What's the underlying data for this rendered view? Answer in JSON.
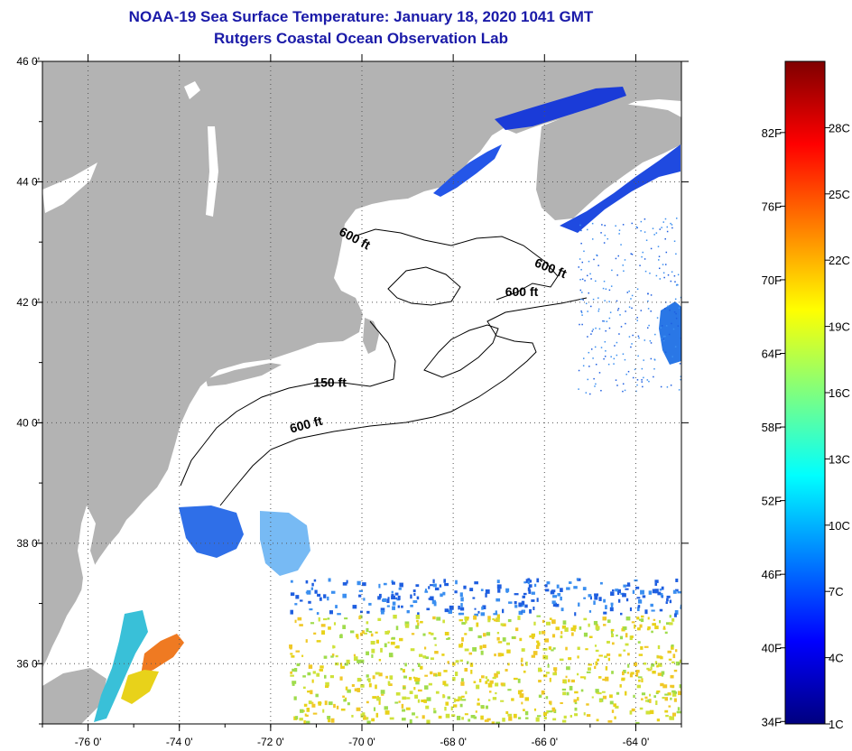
{
  "header": {
    "title": "NOAA-19 Sea Surface Temperature:  January 18, 2020 1041 GMT",
    "subtitle": "Rutgers Coastal Ocean Observation Lab"
  },
  "axes": {
    "lon_min": -77,
    "lon_max": -63,
    "lat_min": 35,
    "lat_max": 46,
    "lon_ticks": [
      {
        "value": -76,
        "label": "-76 0'"
      },
      {
        "value": -74,
        "label": "-74 0'"
      },
      {
        "value": -72,
        "label": "-72 0'"
      },
      {
        "value": -70,
        "label": "-70 0'"
      },
      {
        "value": -68,
        "label": "-68 0'"
      },
      {
        "value": -66,
        "label": "-66 0'"
      },
      {
        "value": -64,
        "label": "-64 0'"
      }
    ],
    "lat_ticks": [
      {
        "value": 46,
        "label": "46 0'"
      },
      {
        "value": 44,
        "label": "44 0'"
      },
      {
        "value": 42,
        "label": "42 0'"
      },
      {
        "value": 40,
        "label": "40 0'"
      },
      {
        "value": 38,
        "label": "38 0'"
      },
      {
        "value": 36,
        "label": "36 0'"
      }
    ]
  },
  "contour_labels": [
    {
      "text": "600 ft",
      "lon": -70.2,
      "lat": 43.0,
      "angle": 28
    },
    {
      "text": "600 ft",
      "lon": -65.9,
      "lat": 42.5,
      "angle": 22
    },
    {
      "text": "600 ft",
      "lon": -66.5,
      "lat": 42.1,
      "angle": 0
    },
    {
      "text": "150 ft",
      "lon": -70.7,
      "lat": 40.6,
      "angle": 0
    },
    {
      "text": "600 ft",
      "lon": -71.2,
      "lat": 39.9,
      "angle": -15
    }
  ],
  "colorbar": {
    "min_c": 1,
    "max_c": 31,
    "colors": [
      "#00007f",
      "#0000ff",
      "#007fff",
      "#00ffff",
      "#7fff7f",
      "#ffff00",
      "#ff7f00",
      "#ff0000",
      "#7f0000"
    ],
    "fahrenheit_labels": [
      "82F",
      "76F",
      "70F",
      "64F",
      "58F",
      "52F",
      "46F",
      "40F",
      "34F"
    ],
    "celsius_labels": [
      "28C",
      "25C",
      "22C",
      "19C",
      "16C",
      "13C",
      "10C",
      "7C",
      "4C",
      "1C"
    ]
  },
  "colors": {
    "land": "#b3b3b3",
    "title": "#1a1aa8"
  }
}
